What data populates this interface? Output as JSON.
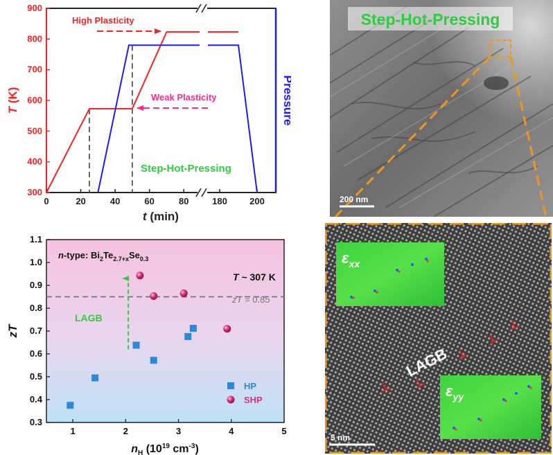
{
  "top_chart": {
    "ylabel_italic": "T",
    "ylabel_unit": " (K)",
    "xlabel_italic": "t",
    "xlabel_unit": " (min)",
    "right_label": "Pressure",
    "y_ticks": [
      "300",
      "400",
      "500",
      "600",
      "700",
      "800",
      "900"
    ],
    "x_ticks": [
      "0",
      "20",
      "40",
      "60",
      "80",
      "180",
      "200"
    ],
    "annotation_high": "High Plasticity",
    "annotation_weak": "Weak Plasticity",
    "process_label": "Step-Hot-Pressing",
    "colors": {
      "temperature": "#ff2020",
      "pressure": "#1a1aff",
      "annotation": "#ff2a8a",
      "process": "#2ecc40",
      "guides": "#555555"
    }
  },
  "bottom_chart": {
    "material_prefix": "n",
    "material_text": "-type: Bi",
    "material_sub1": "2",
    "material_te": "Te",
    "material_sub2": "2.7+x",
    "material_se": "Se",
    "material_sub3": "0.3",
    "temp_italic": "T",
    "temp_text": " ~ 307 K",
    "ref_line_italic": "zT",
    "ref_line_text": " = 0.85",
    "lagb_label": "LAGB",
    "ylabel": "zT",
    "xlabel_n": "n",
    "xlabel_sub": "H",
    "xlabel_unit": " (10",
    "xlabel_exp": "19",
    "xlabel_cm": " cm",
    "xlabel_exp2": "-3",
    "xlabel_close": ")",
    "legend_hp": "HP",
    "legend_shp": "SHP",
    "y_ticks": [
      "0.3",
      "0.4",
      "0.5",
      "0.6",
      "0.7",
      "0.8",
      "0.9",
      "1.0",
      "1.1"
    ],
    "x_ticks": [
      "1",
      "2",
      "3",
      "4",
      "5"
    ],
    "colors": {
      "hp": "#2a8ad8",
      "shp": "#e0307a",
      "lagb": "#2ecc40",
      "ref": "#777777"
    }
  },
  "tem_image": {
    "title": "Step-Hot-Pressing",
    "scale_bar": "200 nm",
    "frame_color": "#f0961e"
  },
  "hrtem_image": {
    "lagb": "LAGB",
    "exx_symbol": "ε",
    "exx_sub": "xx",
    "eyy_symbol": "ε",
    "eyy_sub": "yy",
    "scale_bar": "5 nm",
    "dislocation_mark": "⊥"
  },
  "chart_data": [
    {
      "type": "line",
      "title": "",
      "xlabel": "t (min)",
      "ylabel": "T (K)",
      "xlim": [
        0,
        210
      ],
      "ylim": [
        300,
        900
      ],
      "x_axis_break": [
        90,
        170
      ],
      "series": [
        {
          "name": "T (K)",
          "x": [
            0,
            25,
            50,
            70,
            190
          ],
          "y": [
            300,
            573,
            573,
            823,
            823
          ]
        },
        {
          "name": "Pressure",
          "x": [
            30,
            48,
            190,
            200
          ],
          "y": [
            300,
            780,
            780,
            300
          ]
        }
      ],
      "annotations": [
        "High Plasticity",
        "Weak Plasticity",
        "Step-Hot-Pressing"
      ]
    },
    {
      "type": "scatter",
      "title": "",
      "xlabel": "nH (10^19 cm^-3)",
      "ylabel": "zT",
      "xlim": [
        0.5,
        5
      ],
      "ylim": [
        0.3,
        1.1
      ],
      "reference_line": 0.85,
      "series": [
        {
          "name": "HP",
          "x": [
            0.95,
            1.42,
            2.2,
            2.53,
            3.18,
            3.28
          ],
          "y": [
            0.375,
            0.495,
            0.638,
            0.572,
            0.676,
            0.712
          ]
        },
        {
          "name": "SHP",
          "x": [
            2.27,
            2.53,
            3.1,
            3.92
          ],
          "y": [
            0.943,
            0.853,
            0.865,
            0.71
          ]
        }
      ]
    }
  ]
}
